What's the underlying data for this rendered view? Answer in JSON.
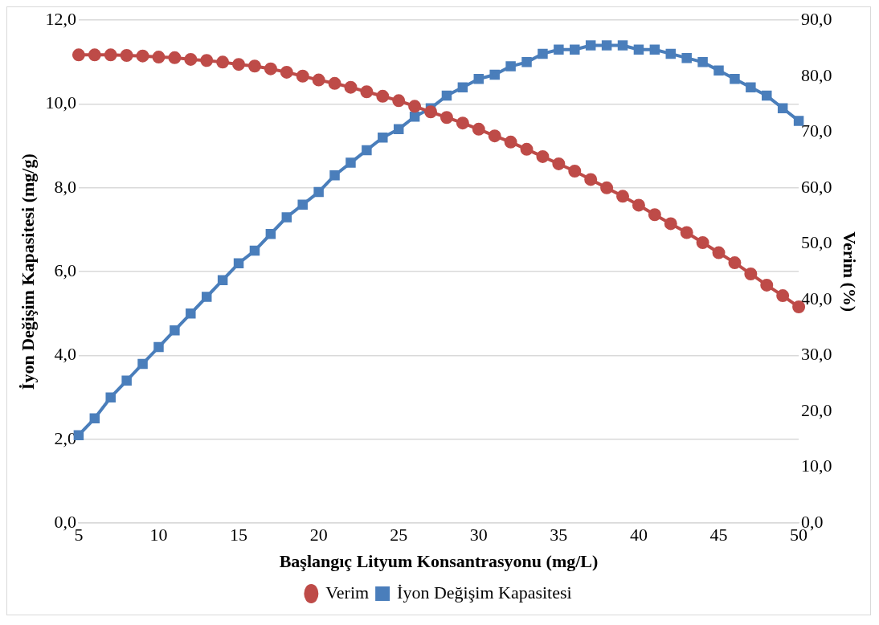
{
  "chart_data": {
    "type": "line",
    "xlabel": "Başlangıç Lityum Konsantrasyonu (mg/L)",
    "ylabel": "İyon Değişim Kapasitesi (mg/g)",
    "y2label": "Verim (%)",
    "x": [
      5,
      6,
      7,
      8,
      9,
      10,
      11,
      12,
      13,
      14,
      15,
      16,
      17,
      18,
      19,
      20,
      21,
      22,
      23,
      24,
      25,
      26,
      27,
      28,
      29,
      30,
      31,
      32,
      33,
      34,
      35,
      36,
      37,
      38,
      39,
      40,
      41,
      42,
      43,
      44,
      45,
      46,
      47,
      48,
      49,
      50
    ],
    "xlim": [
      5,
      50
    ],
    "xticks": [
      5,
      10,
      15,
      20,
      25,
      30,
      35,
      40,
      45,
      50
    ],
    "ylim": [
      0,
      12
    ],
    "yticks": [
      {
        "value": 0,
        "label": "0,0"
      },
      {
        "value": 2,
        "label": "2,0"
      },
      {
        "value": 4,
        "label": "4,0"
      },
      {
        "value": 6,
        "label": "6,0"
      },
      {
        "value": 8,
        "label": "8,0"
      },
      {
        "value": 10,
        "label": "10,0"
      },
      {
        "value": 12,
        "label": "12,0"
      }
    ],
    "y2lim": [
      0,
      90
    ],
    "y2ticks": [
      {
        "value": 0,
        "label": "0,0"
      },
      {
        "value": 10,
        "label": "10,0"
      },
      {
        "value": 20,
        "label": "20,0"
      },
      {
        "value": 30,
        "label": "30,0"
      },
      {
        "value": 40,
        "label": "40,0"
      },
      {
        "value": 50,
        "label": "50,0"
      },
      {
        "value": 60,
        "label": "60,0"
      },
      {
        "value": 70,
        "label": "70,0"
      },
      {
        "value": 80,
        "label": "80,0"
      },
      {
        "value": 90,
        "label": "90,0"
      }
    ],
    "grid": "y",
    "legend": "bottom",
    "line_style": "solid",
    "series": [
      {
        "name": "İyon Değişim Kapasitesi",
        "color": "#4a7ebb",
        "marker": "square",
        "values": [
          2.1,
          2.5,
          3.0,
          3.4,
          3.8,
          4.2,
          4.6,
          5.0,
          5.4,
          5.8,
          6.2,
          6.5,
          6.9,
          7.3,
          7.6,
          7.9,
          8.3,
          8.6,
          8.9,
          9.2,
          9.4,
          9.7,
          9.9,
          10.2,
          10.4,
          10.6,
          10.7,
          10.9,
          11.0,
          11.2,
          11.3,
          11.3,
          11.4,
          11.4,
          11.4,
          11.3,
          11.3,
          11.2,
          11.1,
          11.0,
          10.8,
          10.6,
          10.4,
          10.2,
          9.9,
          9.6
        ]
      },
      {
        "name": "Verim",
        "color": "#be4b48",
        "marker": "circle",
        "axis": "y2",
        "values": [
          83.8,
          83.8,
          83.8,
          83.7,
          83.6,
          83.4,
          83.3,
          83.0,
          82.8,
          82.5,
          82.1,
          81.8,
          81.3,
          80.7,
          80.0,
          79.3,
          78.7,
          78.0,
          77.2,
          76.4,
          75.6,
          74.6,
          73.6,
          72.6,
          71.6,
          70.5,
          69.3,
          68.2,
          66.9,
          65.6,
          64.3,
          63.0,
          61.5,
          60.0,
          58.5,
          56.9,
          55.2,
          53.6,
          52.0,
          50.2,
          48.4,
          46.6,
          44.6,
          42.6,
          40.7,
          38.7
        ]
      }
    ]
  }
}
